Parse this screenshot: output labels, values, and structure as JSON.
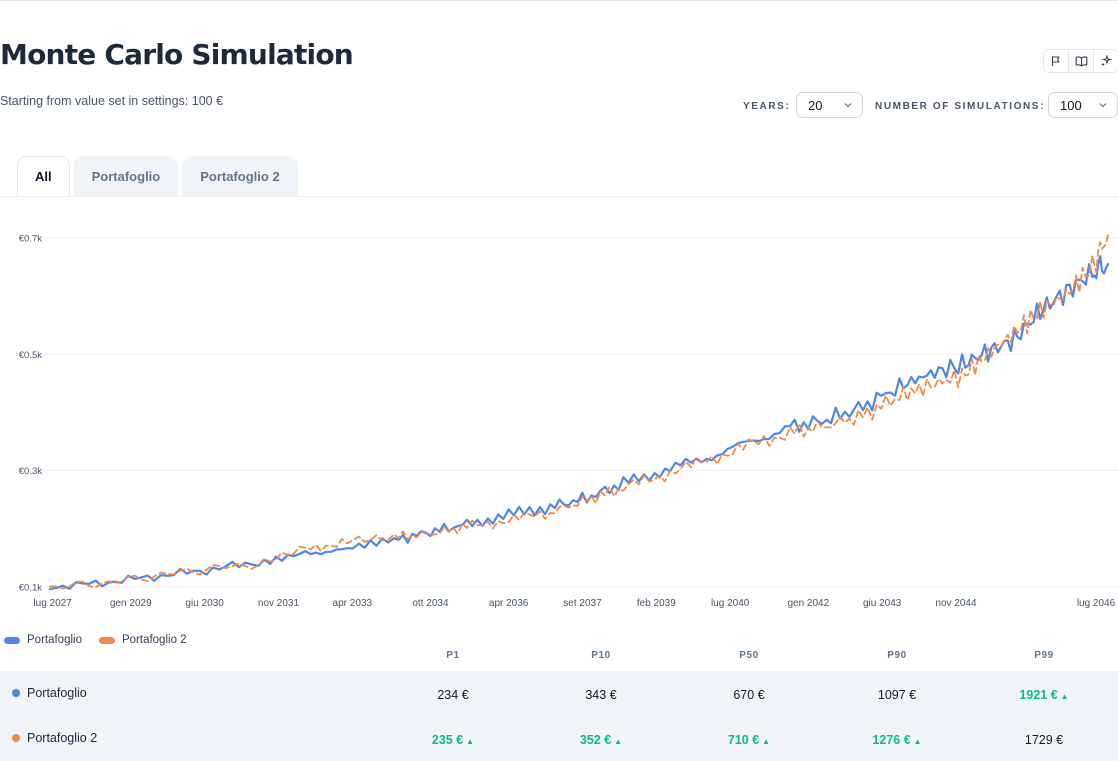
{
  "page": {
    "title": "Monte Carlo Simulation",
    "subtitle": "Starting from value set in settings: 100 €"
  },
  "toolbar": {
    "icons": [
      "flag-icon",
      "book-icon",
      "sparkle-icon"
    ]
  },
  "controls": {
    "years_label": "YEARS:",
    "years_value": "20",
    "simulations_label": "NUMBER OF SIMULATIONS:",
    "simulations_value": "100"
  },
  "tabs": [
    {
      "label": "All",
      "active": true
    },
    {
      "label": "Portafoglio",
      "active": false
    },
    {
      "label": "Portafoglio 2",
      "active": false
    }
  ],
  "chart_data": {
    "type": "line",
    "x_range": [
      "2026-01",
      "2046-01"
    ],
    "ylim": [
      0.1,
      0.7
    ],
    "y_ticks": [
      "€0.1k",
      "€0.3k",
      "€0.5k",
      "€0.7k"
    ],
    "x_ticks": [
      "lug 2027",
      "gen 2029",
      "giu 2030",
      "nov 2031",
      "apr 2033",
      "ott 2034",
      "apr 2036",
      "set 2037",
      "feb 2039",
      "lug 2040",
      "gen 2042",
      "giu 2043",
      "nov 2044",
      "lug 2046"
    ],
    "grid": true,
    "legend_position": "bottom-left",
    "series": [
      {
        "name": "Portafoglio",
        "color": "#4f86e8",
        "dashed": false,
        "points": [
          [
            2026.0,
            0.1
          ],
          [
            2027.0,
            0.107
          ],
          [
            2028.0,
            0.118
          ],
          [
            2029.0,
            0.129
          ],
          [
            2030.0,
            0.143
          ],
          [
            2030.9,
            0.16
          ],
          [
            2031.7,
            0.163
          ],
          [
            2032.6,
            0.18
          ],
          [
            2033.3,
            0.195
          ],
          [
            2034.0,
            0.208
          ],
          [
            2034.8,
            0.224
          ],
          [
            2035.6,
            0.238
          ],
          [
            2036.3,
            0.253
          ],
          [
            2037.0,
            0.278
          ],
          [
            2037.8,
            0.301
          ],
          [
            2038.6,
            0.322
          ],
          [
            2039.4,
            0.348
          ],
          [
            2040.2,
            0.375
          ],
          [
            2040.9,
            0.387
          ],
          [
            2041.6,
            0.41
          ],
          [
            2042.3,
            0.445
          ],
          [
            2042.9,
            0.467
          ],
          [
            2043.5,
            0.482
          ],
          [
            2044.0,
            0.505
          ],
          [
            2044.5,
            0.525
          ],
          [
            2045.0,
            0.575
          ],
          [
            2045.5,
            0.608
          ],
          [
            2046.0,
            0.64
          ],
          [
            2046.3,
            0.655
          ]
        ]
      },
      {
        "name": "Portafoglio 2",
        "color": "#f08a4b",
        "dashed": true,
        "points": [
          [
            2026.0,
            0.1
          ],
          [
            2027.0,
            0.106
          ],
          [
            2028.0,
            0.119
          ],
          [
            2029.0,
            0.131
          ],
          [
            2030.0,
            0.14
          ],
          [
            2030.9,
            0.165
          ],
          [
            2031.7,
            0.178
          ],
          [
            2032.6,
            0.186
          ],
          [
            2033.3,
            0.191
          ],
          [
            2034.0,
            0.204
          ],
          [
            2034.8,
            0.215
          ],
          [
            2035.6,
            0.228
          ],
          [
            2036.3,
            0.25
          ],
          [
            2037.0,
            0.27
          ],
          [
            2037.8,
            0.294
          ],
          [
            2038.6,
            0.318
          ],
          [
            2039.4,
            0.343
          ],
          [
            2040.2,
            0.366
          ],
          [
            2040.9,
            0.377
          ],
          [
            2041.6,
            0.395
          ],
          [
            2042.3,
            0.428
          ],
          [
            2042.9,
            0.447
          ],
          [
            2043.5,
            0.463
          ],
          [
            2044.0,
            0.5
          ],
          [
            2044.5,
            0.537
          ],
          [
            2045.0,
            0.575
          ],
          [
            2045.5,
            0.603
          ],
          [
            2046.0,
            0.65
          ],
          [
            2046.3,
            0.705
          ]
        ]
      }
    ]
  },
  "legend": [
    {
      "label": "Portafoglio",
      "color": "#4f86e8"
    },
    {
      "label": "Portafoglio 2",
      "color": "#f08a4b"
    }
  ],
  "table": {
    "columns": [
      "P1",
      "P10",
      "P50",
      "P90",
      "P99"
    ],
    "rows": [
      {
        "name": "Portafoglio",
        "color": "#4f86e8",
        "values": [
          "234 €",
          "343 €",
          "670 €",
          "1097 €",
          "1921 €"
        ],
        "best": [
          false,
          false,
          false,
          false,
          true
        ]
      },
      {
        "name": "Portafoglio 2",
        "color": "#f08a4b",
        "values": [
          "235 €",
          "352 €",
          "710 €",
          "1276 €",
          "1729 €"
        ],
        "best": [
          true,
          true,
          true,
          true,
          false
        ]
      }
    ]
  }
}
